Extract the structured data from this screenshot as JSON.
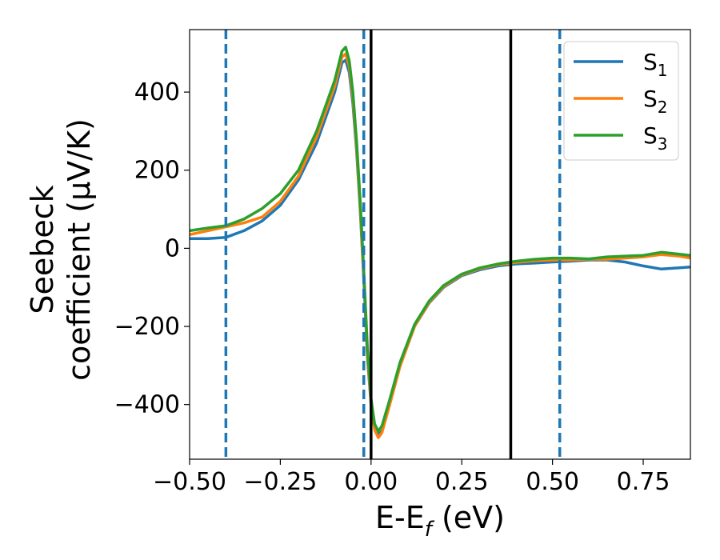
{
  "chart_data": {
    "type": "line",
    "xlabel": "E-E",
    "xlabel_sub": "f",
    "xlabel_unit": " (eV)",
    "ylabel_line1": "Seebeck",
    "ylabel_line2": "coefficient  (μV/K)",
    "xlim": [
      -0.5,
      0.88
    ],
    "ylim": [
      -540,
      560
    ],
    "grid": false,
    "legend_position": "top-right",
    "x_ticks": [
      -0.5,
      -0.25,
      0.0,
      0.25,
      0.5,
      0.75
    ],
    "x_tick_labels": [
      "−0.50",
      "−0.25",
      "0.00",
      "0.25",
      "0.50",
      "0.75"
    ],
    "y_ticks": [
      400,
      200,
      0,
      -200,
      -400
    ],
    "y_tick_labels": [
      "400",
      "200",
      "0",
      "−200",
      "−400"
    ],
    "vertical_lines": [
      {
        "x": -0.4,
        "style": "dashed",
        "color": "#1f77b4"
      },
      {
        "x": -0.02,
        "style": "dashed",
        "color": "#1f77b4"
      },
      {
        "x": 0.0,
        "style": "solid",
        "color": "#000000"
      },
      {
        "x": 0.385,
        "style": "solid",
        "color": "#000000"
      },
      {
        "x": 0.52,
        "style": "dashed",
        "color": "#1f77b4"
      }
    ],
    "series": [
      {
        "name": "S",
        "sub": "1",
        "color": "#1f77b4",
        "points": [
          [
            -0.5,
            25
          ],
          [
            -0.45,
            25
          ],
          [
            -0.4,
            28
          ],
          [
            -0.35,
            45
          ],
          [
            -0.3,
            70
          ],
          [
            -0.25,
            110
          ],
          [
            -0.2,
            175
          ],
          [
            -0.15,
            270
          ],
          [
            -0.1,
            400
          ],
          [
            -0.08,
            475
          ],
          [
            -0.07,
            482
          ],
          [
            -0.06,
            450
          ],
          [
            -0.05,
            370
          ],
          [
            -0.04,
            250
          ],
          [
            -0.03,
            100
          ],
          [
            -0.02,
            -80
          ],
          [
            -0.01,
            -280
          ],
          [
            0.0,
            -400
          ],
          [
            0.01,
            -460
          ],
          [
            0.02,
            -478
          ],
          [
            0.03,
            -468
          ],
          [
            0.05,
            -400
          ],
          [
            0.08,
            -300
          ],
          [
            0.12,
            -200
          ],
          [
            0.16,
            -140
          ],
          [
            0.2,
            -100
          ],
          [
            0.25,
            -70
          ],
          [
            0.3,
            -55
          ],
          [
            0.35,
            -45
          ],
          [
            0.4,
            -40
          ],
          [
            0.45,
            -38
          ],
          [
            0.5,
            -35
          ],
          [
            0.55,
            -33
          ],
          [
            0.6,
            -30
          ],
          [
            0.65,
            -30
          ],
          [
            0.7,
            -35
          ],
          [
            0.75,
            -45
          ],
          [
            0.8,
            -53
          ],
          [
            0.85,
            -50
          ],
          [
            0.88,
            -48
          ]
        ]
      },
      {
        "name": "S",
        "sub": "2",
        "color": "#ff7f0e",
        "points": [
          [
            -0.5,
            35
          ],
          [
            -0.45,
            45
          ],
          [
            -0.4,
            55
          ],
          [
            -0.35,
            65
          ],
          [
            -0.3,
            80
          ],
          [
            -0.25,
            120
          ],
          [
            -0.2,
            185
          ],
          [
            -0.15,
            285
          ],
          [
            -0.1,
            415
          ],
          [
            -0.08,
            490
          ],
          [
            -0.07,
            498
          ],
          [
            -0.06,
            465
          ],
          [
            -0.05,
            385
          ],
          [
            -0.04,
            260
          ],
          [
            -0.03,
            110
          ],
          [
            -0.02,
            -70
          ],
          [
            -0.01,
            -270
          ],
          [
            0.0,
            -395
          ],
          [
            0.01,
            -465
          ],
          [
            0.02,
            -485
          ],
          [
            0.03,
            -472
          ],
          [
            0.05,
            -405
          ],
          [
            0.08,
            -302
          ],
          [
            0.12,
            -200
          ],
          [
            0.16,
            -138
          ],
          [
            0.2,
            -98
          ],
          [
            0.25,
            -68
          ],
          [
            0.3,
            -52
          ],
          [
            0.35,
            -42
          ],
          [
            0.4,
            -36
          ],
          [
            0.45,
            -32
          ],
          [
            0.5,
            -30
          ],
          [
            0.55,
            -30
          ],
          [
            0.6,
            -28
          ],
          [
            0.65,
            -28
          ],
          [
            0.7,
            -25
          ],
          [
            0.75,
            -22
          ],
          [
            0.8,
            -16
          ],
          [
            0.85,
            -20
          ],
          [
            0.88,
            -25
          ]
        ]
      },
      {
        "name": "S",
        "sub": "3",
        "color": "#2ca02c",
        "points": [
          [
            -0.5,
            45
          ],
          [
            -0.45,
            52
          ],
          [
            -0.4,
            58
          ],
          [
            -0.35,
            75
          ],
          [
            -0.3,
            102
          ],
          [
            -0.25,
            140
          ],
          [
            -0.2,
            200
          ],
          [
            -0.15,
            300
          ],
          [
            -0.1,
            430
          ],
          [
            -0.08,
            505
          ],
          [
            -0.07,
            515
          ],
          [
            -0.06,
            480
          ],
          [
            -0.05,
            400
          ],
          [
            -0.04,
            275
          ],
          [
            -0.03,
            125
          ],
          [
            -0.02,
            -55
          ],
          [
            -0.01,
            -255
          ],
          [
            0.0,
            -385
          ],
          [
            0.01,
            -450
          ],
          [
            0.02,
            -468
          ],
          [
            0.03,
            -455
          ],
          [
            0.05,
            -392
          ],
          [
            0.08,
            -292
          ],
          [
            0.12,
            -195
          ],
          [
            0.16,
            -135
          ],
          [
            0.2,
            -95
          ],
          [
            0.25,
            -66
          ],
          [
            0.3,
            -50
          ],
          [
            0.35,
            -40
          ],
          [
            0.4,
            -33
          ],
          [
            0.45,
            -28
          ],
          [
            0.5,
            -25
          ],
          [
            0.55,
            -25
          ],
          [
            0.6,
            -27
          ],
          [
            0.65,
            -22
          ],
          [
            0.7,
            -20
          ],
          [
            0.75,
            -18
          ],
          [
            0.8,
            -10
          ],
          [
            0.85,
            -15
          ],
          [
            0.88,
            -18
          ]
        ]
      }
    ]
  }
}
